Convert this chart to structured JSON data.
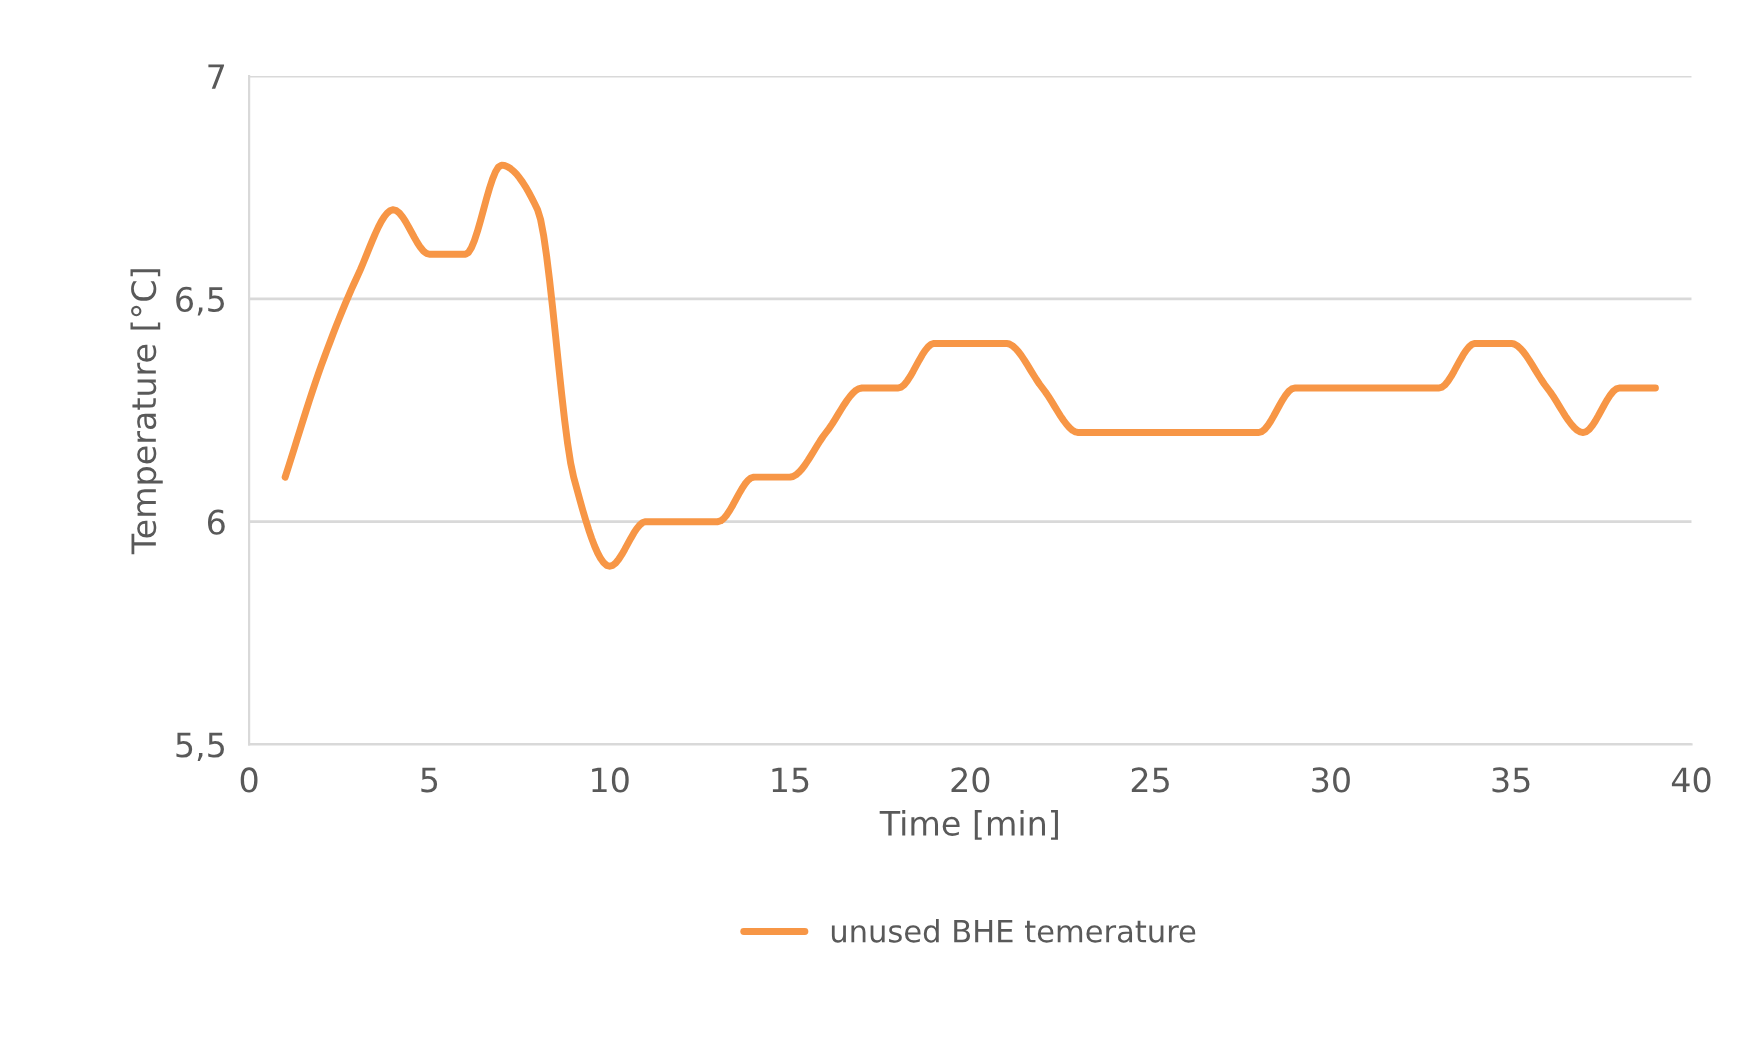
{
  "chart_data": {
    "type": "line",
    "xlabel": "Time [min]",
    "ylabel": "Temperature [°C]",
    "x": [
      1,
      2,
      3,
      4,
      5,
      6,
      7,
      8,
      9,
      10,
      11,
      12,
      13,
      14,
      15,
      16,
      17,
      18,
      19,
      20,
      21,
      22,
      23,
      24,
      25,
      26,
      27,
      28,
      29,
      30,
      31,
      32,
      33,
      34,
      35,
      36,
      37,
      38,
      39
    ],
    "series": [
      {
        "name": "unused BHE temerature",
        "color": "#f79646",
        "values": [
          6.1,
          6.35,
          6.55,
          6.7,
          6.6,
          6.6,
          6.8,
          6.7,
          6.1,
          5.9,
          6.0,
          6.0,
          6.0,
          6.1,
          6.1,
          6.2,
          6.3,
          6.3,
          6.4,
          6.4,
          6.4,
          6.3,
          6.2,
          6.2,
          6.2,
          6.2,
          6.2,
          6.2,
          6.3,
          6.3,
          6.3,
          6.3,
          6.3,
          6.4,
          6.4,
          6.3,
          6.2,
          6.3,
          6.3
        ]
      }
    ],
    "xlim": [
      0,
      40
    ],
    "xticks": [
      0,
      5,
      10,
      15,
      20,
      25,
      30,
      35,
      40
    ],
    "ylim": [
      5.5,
      7
    ],
    "yticks": [
      {
        "value": 5.5,
        "label": "5,5"
      },
      6,
      {
        "value": 6.5,
        "label": "6,5"
      },
      7
    ],
    "grid": "y",
    "legend": "bottom",
    "marker": "none",
    "line_style": "solid"
  }
}
